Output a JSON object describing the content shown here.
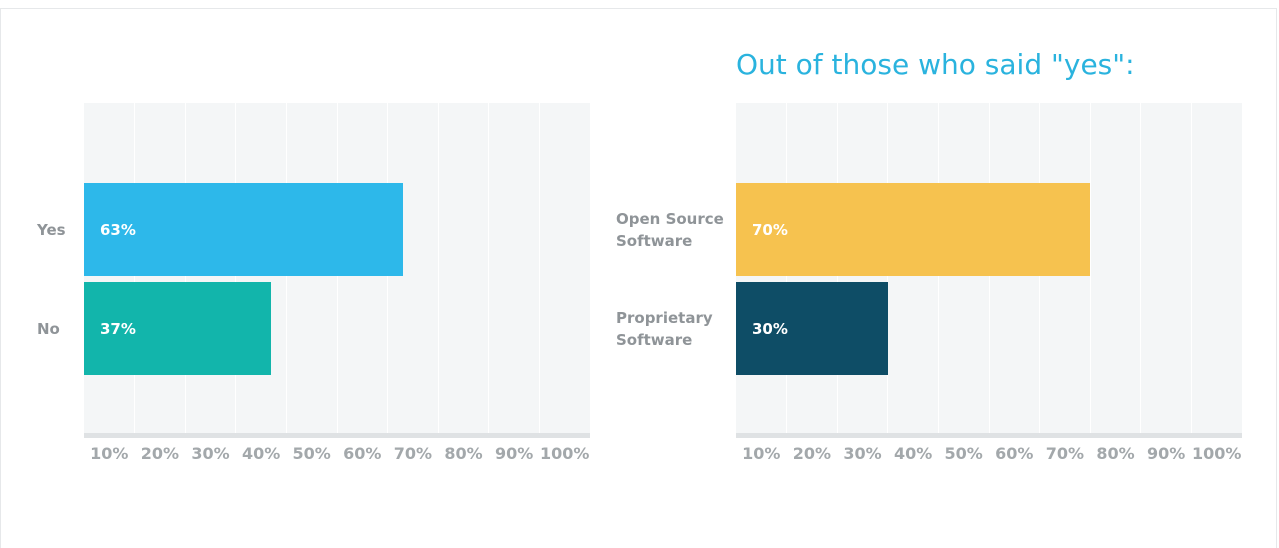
{
  "chart_data": [
    {
      "type": "bar",
      "orientation": "horizontal",
      "categories": [
        "Yes",
        "No"
      ],
      "values": [
        63,
        37
      ],
      "value_labels": [
        "63%",
        "37%"
      ],
      "colors": [
        "#2db8ea",
        "#12b5ab"
      ],
      "xlim": [
        0,
        100
      ],
      "xticks": [
        {
          "value": 10,
          "label": "10%"
        },
        {
          "value": 20,
          "label": "20%"
        },
        {
          "value": 30,
          "label": "30%"
        },
        {
          "value": 40,
          "label": "40%"
        },
        {
          "value": 50,
          "label": "50%"
        },
        {
          "value": 60,
          "label": "60%"
        },
        {
          "value": 70,
          "label": "70%"
        },
        {
          "value": 80,
          "label": "80%"
        },
        {
          "value": 90,
          "label": "90%"
        },
        {
          "value": 100,
          "label": "100%"
        }
      ],
      "grid": true
    },
    {
      "type": "bar",
      "orientation": "horizontal",
      "title": "Out of those who said \"yes\":",
      "categories": [
        "Open Source Software",
        "Proprietary Software"
      ],
      "values": [
        70,
        30
      ],
      "value_labels": [
        "70%",
        "30%"
      ],
      "colors": [
        "#f6c24f",
        "#0e4d66"
      ],
      "xlim": [
        0,
        100
      ],
      "xticks": [
        {
          "value": 10,
          "label": "10%"
        },
        {
          "value": 20,
          "label": "20%"
        },
        {
          "value": 30,
          "label": "30%"
        },
        {
          "value": 40,
          "label": "40%"
        },
        {
          "value": 50,
          "label": "50%"
        },
        {
          "value": 60,
          "label": "60%"
        },
        {
          "value": 70,
          "label": "70%"
        },
        {
          "value": 80,
          "label": "80%"
        },
        {
          "value": 90,
          "label": "90%"
        },
        {
          "value": 100,
          "label": "100%"
        }
      ],
      "grid": true
    }
  ]
}
